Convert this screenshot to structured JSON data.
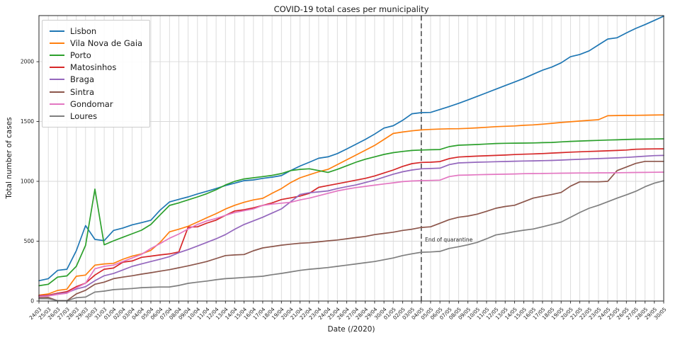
{
  "chart_data": {
    "type": "line",
    "title": "COVID-19 total cases per municipality",
    "xlabel": "Date (/2020)",
    "ylabel": "Total number of cases",
    "grid": true,
    "legend_position": "upper-left",
    "yticks": [
      0,
      500,
      1000,
      1500,
      2000
    ],
    "ylim": [
      0,
      2385
    ],
    "annotation": {
      "text": "End of quarantine",
      "x_date": "04/05"
    },
    "quarantine_line": {
      "style": "dashed",
      "x_date": "04/05",
      "color": "#3a3a3a"
    },
    "x": [
      "24/03",
      "25/03",
      "26/03",
      "27/03",
      "28/03",
      "29/03",
      "30/03",
      "31/03",
      "01/04",
      "02/04",
      "03/04",
      "04/04",
      "05/04",
      "06/04",
      "07/04",
      "08/04",
      "09/04",
      "10/04",
      "11/04",
      "12/04",
      "13/04",
      "14/04",
      "15/04",
      "16/04",
      "17/04",
      "18/04",
      "19/04",
      "20/04",
      "21/04",
      "22/04",
      "23/04",
      "24/04",
      "25/04",
      "26/04",
      "27/04",
      "28/04",
      "29/04",
      "30/04",
      "01/05",
      "02/05",
      "03/05",
      "04/05",
      "05/05",
      "06/05",
      "07/05",
      "08/05",
      "09/05",
      "10/05",
      "11/05",
      "12/05",
      "13/05",
      "14/05",
      "15/05",
      "16/05",
      "17/05",
      "18/05",
      "19/05",
      "20/05",
      "21/05",
      "22/05",
      "23/05",
      "24/05",
      "25/05",
      "26/05",
      "27/05",
      "28/05",
      "29/05",
      "30/05"
    ],
    "series": [
      {
        "name": "Lisbon",
        "color": "#1f77b4",
        "values": [
          170,
          187,
          256,
          266,
          420,
          630,
          515,
          505,
          590,
          610,
          637,
          655,
          675,
          760,
          828,
          850,
          870,
          895,
          917,
          940,
          965,
          985,
          1006,
          1012,
          1025,
          1035,
          1048,
          1090,
          1128,
          1160,
          1193,
          1205,
          1232,
          1270,
          1310,
          1350,
          1395,
          1445,
          1465,
          1510,
          1565,
          1574,
          1576,
          1600,
          1625,
          1652,
          1680,
          1710,
          1740,
          1770,
          1800,
          1830,
          1860,
          1895,
          1929,
          1955,
          1990,
          2041,
          2060,
          2090,
          2140,
          2189,
          2200,
          2240,
          2278,
          2310,
          2345,
          2380
        ]
      },
      {
        "name": "Vila Nova de Gaia",
        "color": "#ff7f0e",
        "values": [
          49,
          59,
          89,
          99,
          207,
          217,
          300,
          310,
          315,
          349,
          375,
          394,
          424,
          490,
          578,
          600,
          625,
          660,
          696,
          730,
          769,
          800,
          825,
          845,
          858,
          900,
          940,
          990,
          1030,
          1055,
          1080,
          1100,
          1140,
          1180,
          1220,
          1260,
          1300,
          1350,
          1400,
          1412,
          1422,
          1430,
          1434,
          1437,
          1439,
          1440,
          1443,
          1447,
          1452,
          1457,
          1460,
          1463,
          1468,
          1472,
          1478,
          1485,
          1492,
          1498,
          1504,
          1510,
          1515,
          1548,
          1550,
          1551,
          1552,
          1553,
          1554,
          1555
        ]
      },
      {
        "name": "Porto",
        "color": "#2ca02c",
        "values": [
          128,
          140,
          200,
          210,
          290,
          465,
          935,
          470,
          503,
          533,
          562,
          592,
          640,
          720,
          799,
          820,
          845,
          870,
          897,
          930,
          970,
          1000,
          1020,
          1030,
          1040,
          1050,
          1065,
          1090,
          1100,
          1105,
          1090,
          1075,
          1100,
          1130,
          1160,
          1185,
          1205,
          1225,
          1240,
          1250,
          1258,
          1262,
          1264,
          1266,
          1290,
          1302,
          1305,
          1308,
          1312,
          1316,
          1318,
          1319,
          1320,
          1321,
          1323,
          1325,
          1330,
          1334,
          1337,
          1340,
          1342,
          1345,
          1347,
          1350,
          1352,
          1353,
          1354,
          1355
        ]
      },
      {
        "name": "Matosinhos",
        "color": "#d62728",
        "values": [
          45,
          49,
          65,
          79,
          120,
          150,
          217,
          266,
          276,
          325,
          335,
          365,
          375,
          385,
          394,
          410,
          617,
          620,
          651,
          676,
          716,
          753,
          763,
          779,
          799,
          820,
          848,
          862,
          877,
          900,
          950,
          965,
          980,
          995,
          1010,
          1025,
          1045,
          1070,
          1095,
          1125,
          1148,
          1158,
          1160,
          1165,
          1190,
          1203,
          1207,
          1211,
          1214,
          1217,
          1220,
          1224,
          1227,
          1229,
          1232,
          1236,
          1240,
          1244,
          1247,
          1250,
          1252,
          1255,
          1258,
          1262,
          1268,
          1270,
          1271,
          1272
        ]
      },
      {
        "name": "Braga",
        "color": "#9467bd",
        "values": [
          40,
          45,
          60,
          70,
          100,
          120,
          170,
          211,
          230,
          260,
          290,
          310,
          330,
          350,
          371,
          404,
          430,
          460,
          490,
          520,
          555,
          600,
          640,
          670,
          700,
          735,
          770,
          830,
          890,
          905,
          912,
          920,
          940,
          955,
          970,
          990,
          1010,
          1035,
          1060,
          1080,
          1095,
          1105,
          1107,
          1110,
          1140,
          1154,
          1157,
          1160,
          1162,
          1164,
          1166,
          1168,
          1170,
          1171,
          1173,
          1175,
          1178,
          1181,
          1184,
          1187,
          1190,
          1193,
          1196,
          1200,
          1205,
          1210,
          1215,
          1217
        ]
      },
      {
        "name": "Sintra",
        "color": "#8c564b",
        "values": [
          28,
          30,
          3,
          3,
          60,
          90,
          140,
          158,
          187,
          200,
          211,
          225,
          237,
          250,
          262,
          278,
          294,
          312,
          330,
          355,
          380,
          385,
          389,
          420,
          444,
          455,
          467,
          475,
          483,
          487,
          495,
          503,
          510,
          520,
          530,
          540,
          555,
          565,
          575,
          590,
          600,
          615,
          620,
          650,
          680,
          700,
          710,
          726,
          750,
          775,
          790,
          800,
          830,
          860,
          875,
          890,
          907,
          960,
          996,
          996,
          996,
          1000,
          1090,
          1120,
          1150,
          1167,
          1167,
          1167
        ]
      },
      {
        "name": "Gondomar",
        "color": "#e377c2",
        "values": [
          38,
          42,
          55,
          65,
          110,
          150,
          270,
          290,
          300,
          330,
          360,
          390,
          440,
          480,
          525,
          560,
          602,
          640,
          670,
          690,
          716,
          740,
          755,
          770,
          799,
          810,
          818,
          825,
          845,
          860,
          880,
          900,
          920,
          935,
          948,
          958,
          968,
          978,
          988,
          998,
          1003,
          1006,
          1008,
          1010,
          1040,
          1051,
          1053,
          1055,
          1057,
          1059,
          1060,
          1062,
          1064,
          1065,
          1066,
          1067,
          1068,
          1069,
          1070,
          1070,
          1071,
          1071,
          1072,
          1073,
          1074,
          1075,
          1076,
          1077
        ]
      },
      {
        "name": "Loures",
        "color": "#7f7f7f",
        "values": [
          20,
          20,
          3,
          3,
          28,
          33,
          75,
          83,
          95,
          100,
          105,
          112,
          115,
          117,
          118,
          130,
          148,
          158,
          167,
          178,
          187,
          192,
          197,
          202,
          207,
          220,
          231,
          243,
          256,
          266,
          272,
          280,
          290,
          300,
          310,
          320,
          330,
          345,
          360,
          380,
          395,
          408,
          410,
          415,
          440,
          454,
          470,
          490,
          520,
          552,
          565,
          580,
          592,
          602,
          620,
          640,
          660,
          700,
          740,
          775,
          800,
          830,
          860,
          887,
          917,
          955,
          985,
          1005
        ]
      }
    ]
  }
}
